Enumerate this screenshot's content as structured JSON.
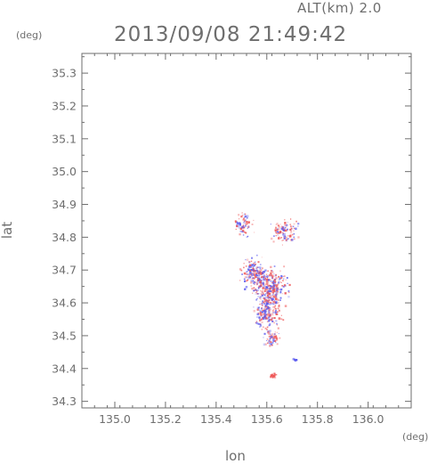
{
  "chart_data": {
    "type": "scatter",
    "title": "2013/09/08 21:49:42",
    "subtitle": "ALT(km) 2.0",
    "xlabel": "lon",
    "ylabel": "lat",
    "x_unit": "(deg)",
    "y_unit": "(deg)",
    "xlim": [
      134.87,
      136.17
    ],
    "ylim": [
      34.28,
      35.36
    ],
    "xticks": [
      "135.0",
      "135.2",
      "135.4",
      "135.6",
      "135.8",
      "136.0"
    ],
    "yticks": [
      "34.3",
      "34.4",
      "34.5",
      "34.6",
      "34.7",
      "34.8",
      "34.9",
      "35.0",
      "35.1",
      "35.2",
      "35.3"
    ],
    "grid": false,
    "colors": {
      "positive": "#ef5a5a",
      "negative": "#5a5aef",
      "axis": "#6e6e6e"
    },
    "clusters": [
      {
        "lon": 135.51,
        "lat": 34.84,
        "spread_lon": 0.03,
        "spread_lat": 0.03,
        "points": 70
      },
      {
        "lon": 135.67,
        "lat": 34.82,
        "spread_lon": 0.05,
        "spread_lat": 0.03,
        "points": 110
      },
      {
        "lon": 135.55,
        "lat": 34.69,
        "spread_lon": 0.04,
        "spread_lat": 0.04,
        "points": 170
      },
      {
        "lon": 135.61,
        "lat": 34.65,
        "spread_lon": 0.06,
        "spread_lat": 0.05,
        "points": 320
      },
      {
        "lon": 135.6,
        "lat": 34.57,
        "spread_lon": 0.045,
        "spread_lat": 0.045,
        "points": 210
      },
      {
        "lon": 135.62,
        "lat": 34.49,
        "spread_lon": 0.025,
        "spread_lat": 0.02,
        "points": 60
      },
      {
        "lon": 135.62,
        "lat": 34.38,
        "spread_lon": 0.012,
        "spread_lat": 0.006,
        "points": 35
      },
      {
        "lon": 135.71,
        "lat": 34.43,
        "spread_lon": 0.008,
        "spread_lat": 0.004,
        "points": 10
      }
    ]
  }
}
